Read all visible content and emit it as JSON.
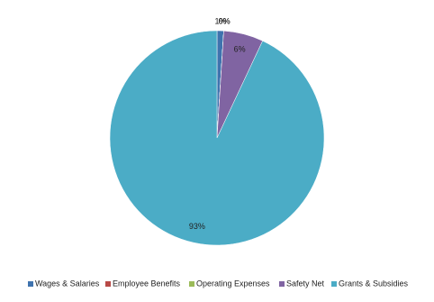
{
  "chart_data": {
    "type": "pie",
    "categories": [
      "Wages & Salaries",
      "Employee Benefits",
      "Operating Expenses",
      "Safety Net",
      "Grants & Subsidies"
    ],
    "values": [
      1,
      0,
      0,
      6,
      93
    ],
    "value_labels": [
      "1%",
      "0%",
      "0%",
      "6%",
      "93%"
    ],
    "colors": [
      "#3f73ae",
      "#b84a47",
      "#9bbb59",
      "#8064a2",
      "#4bacc6"
    ],
    "legend": "bottom"
  }
}
